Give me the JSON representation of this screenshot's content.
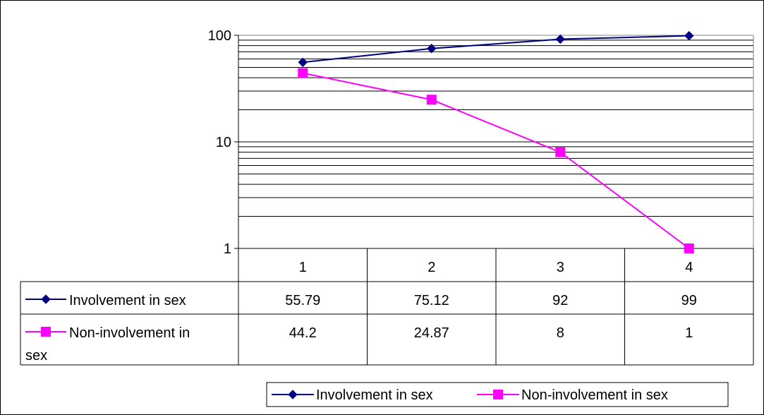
{
  "chart_data": {
    "type": "line",
    "title": "",
    "xlabel": "",
    "ylabel": "",
    "yscale": "log",
    "ylim": [
      1,
      100
    ],
    "y_tick_labels": [
      "1",
      "10",
      "100"
    ],
    "categories": [
      "1",
      "2",
      "3",
      "4"
    ],
    "series": [
      {
        "name": "Involvement in sex",
        "name_wrapped": [
          "Involvement in sex"
        ],
        "values": [
          55.79,
          75.12,
          92,
          99
        ],
        "value_labels": [
          "55.79",
          "75.12",
          "92",
          "99"
        ],
        "color": "#000080",
        "marker": "diamond"
      },
      {
        "name": "Non-involvement in sex",
        "name_wrapped": [
          "Non-involvement in",
          "sex"
        ],
        "values": [
          44.2,
          24.87,
          8,
          1
        ],
        "value_labels": [
          "44.2",
          "24.87",
          "8",
          "1"
        ],
        "color": "#FF00FF",
        "marker": "square"
      }
    ],
    "grid": true,
    "plot_background": "#ffffff",
    "gridline_color": "#000000",
    "data_table": true,
    "legend": "bottom"
  }
}
